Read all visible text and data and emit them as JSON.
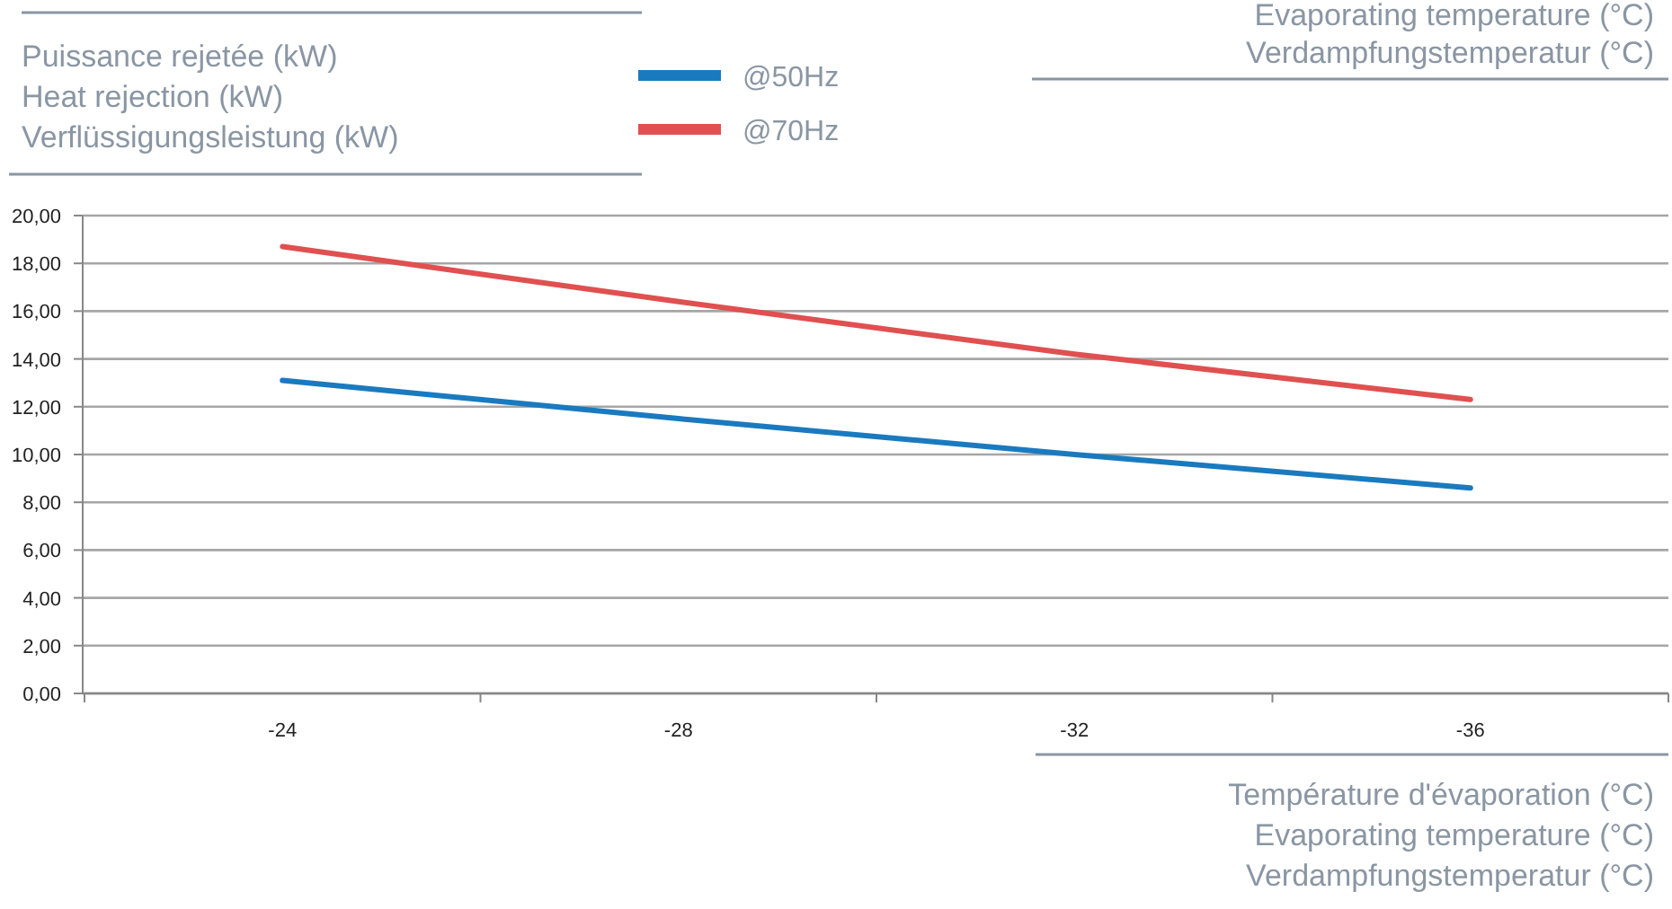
{
  "chart_data": {
    "type": "line",
    "ylabel": "Puissance rejetée (kW)\nHeat rejection (kW)\nVerflüssigungsleistung (kW)",
    "xlabel": "Température d'évaporation (°C)\nEvaporating temperature (°C)\nVerdampfungstemperatur (°C)",
    "annotations": [
      "Evaporating temperature (°C)",
      "Verdampfungstemperatur (°C)"
    ],
    "categories": [
      "-24",
      "-28",
      "-32",
      "-36"
    ],
    "series": [
      {
        "name": "@50Hz",
        "color": "#1a7abf",
        "values": [
          13.1,
          11.5,
          10.0,
          8.6
        ]
      },
      {
        "name": "@70Hz",
        "color": "#e05050",
        "values": [
          18.7,
          16.4,
          14.2,
          12.3
        ]
      }
    ],
    "ylim": [
      0,
      20
    ],
    "yticks": [
      {
        "value": 0,
        "label": "0,00"
      },
      {
        "value": 2,
        "label": "2,00"
      },
      {
        "value": 4,
        "label": "4,00"
      },
      {
        "value": 6,
        "label": "6,00"
      },
      {
        "value": 8,
        "label": "8,00"
      },
      {
        "value": 10,
        "label": "10,00"
      },
      {
        "value": 12,
        "label": "12,00"
      },
      {
        "value": 14,
        "label": "14,00"
      },
      {
        "value": 16,
        "label": "16,00"
      },
      {
        "value": 18,
        "label": "18,00"
      },
      {
        "value": 20,
        "label": "20,00"
      }
    ],
    "grid": "y",
    "legend": "top",
    "marker": "none",
    "line_style": "solid"
  }
}
